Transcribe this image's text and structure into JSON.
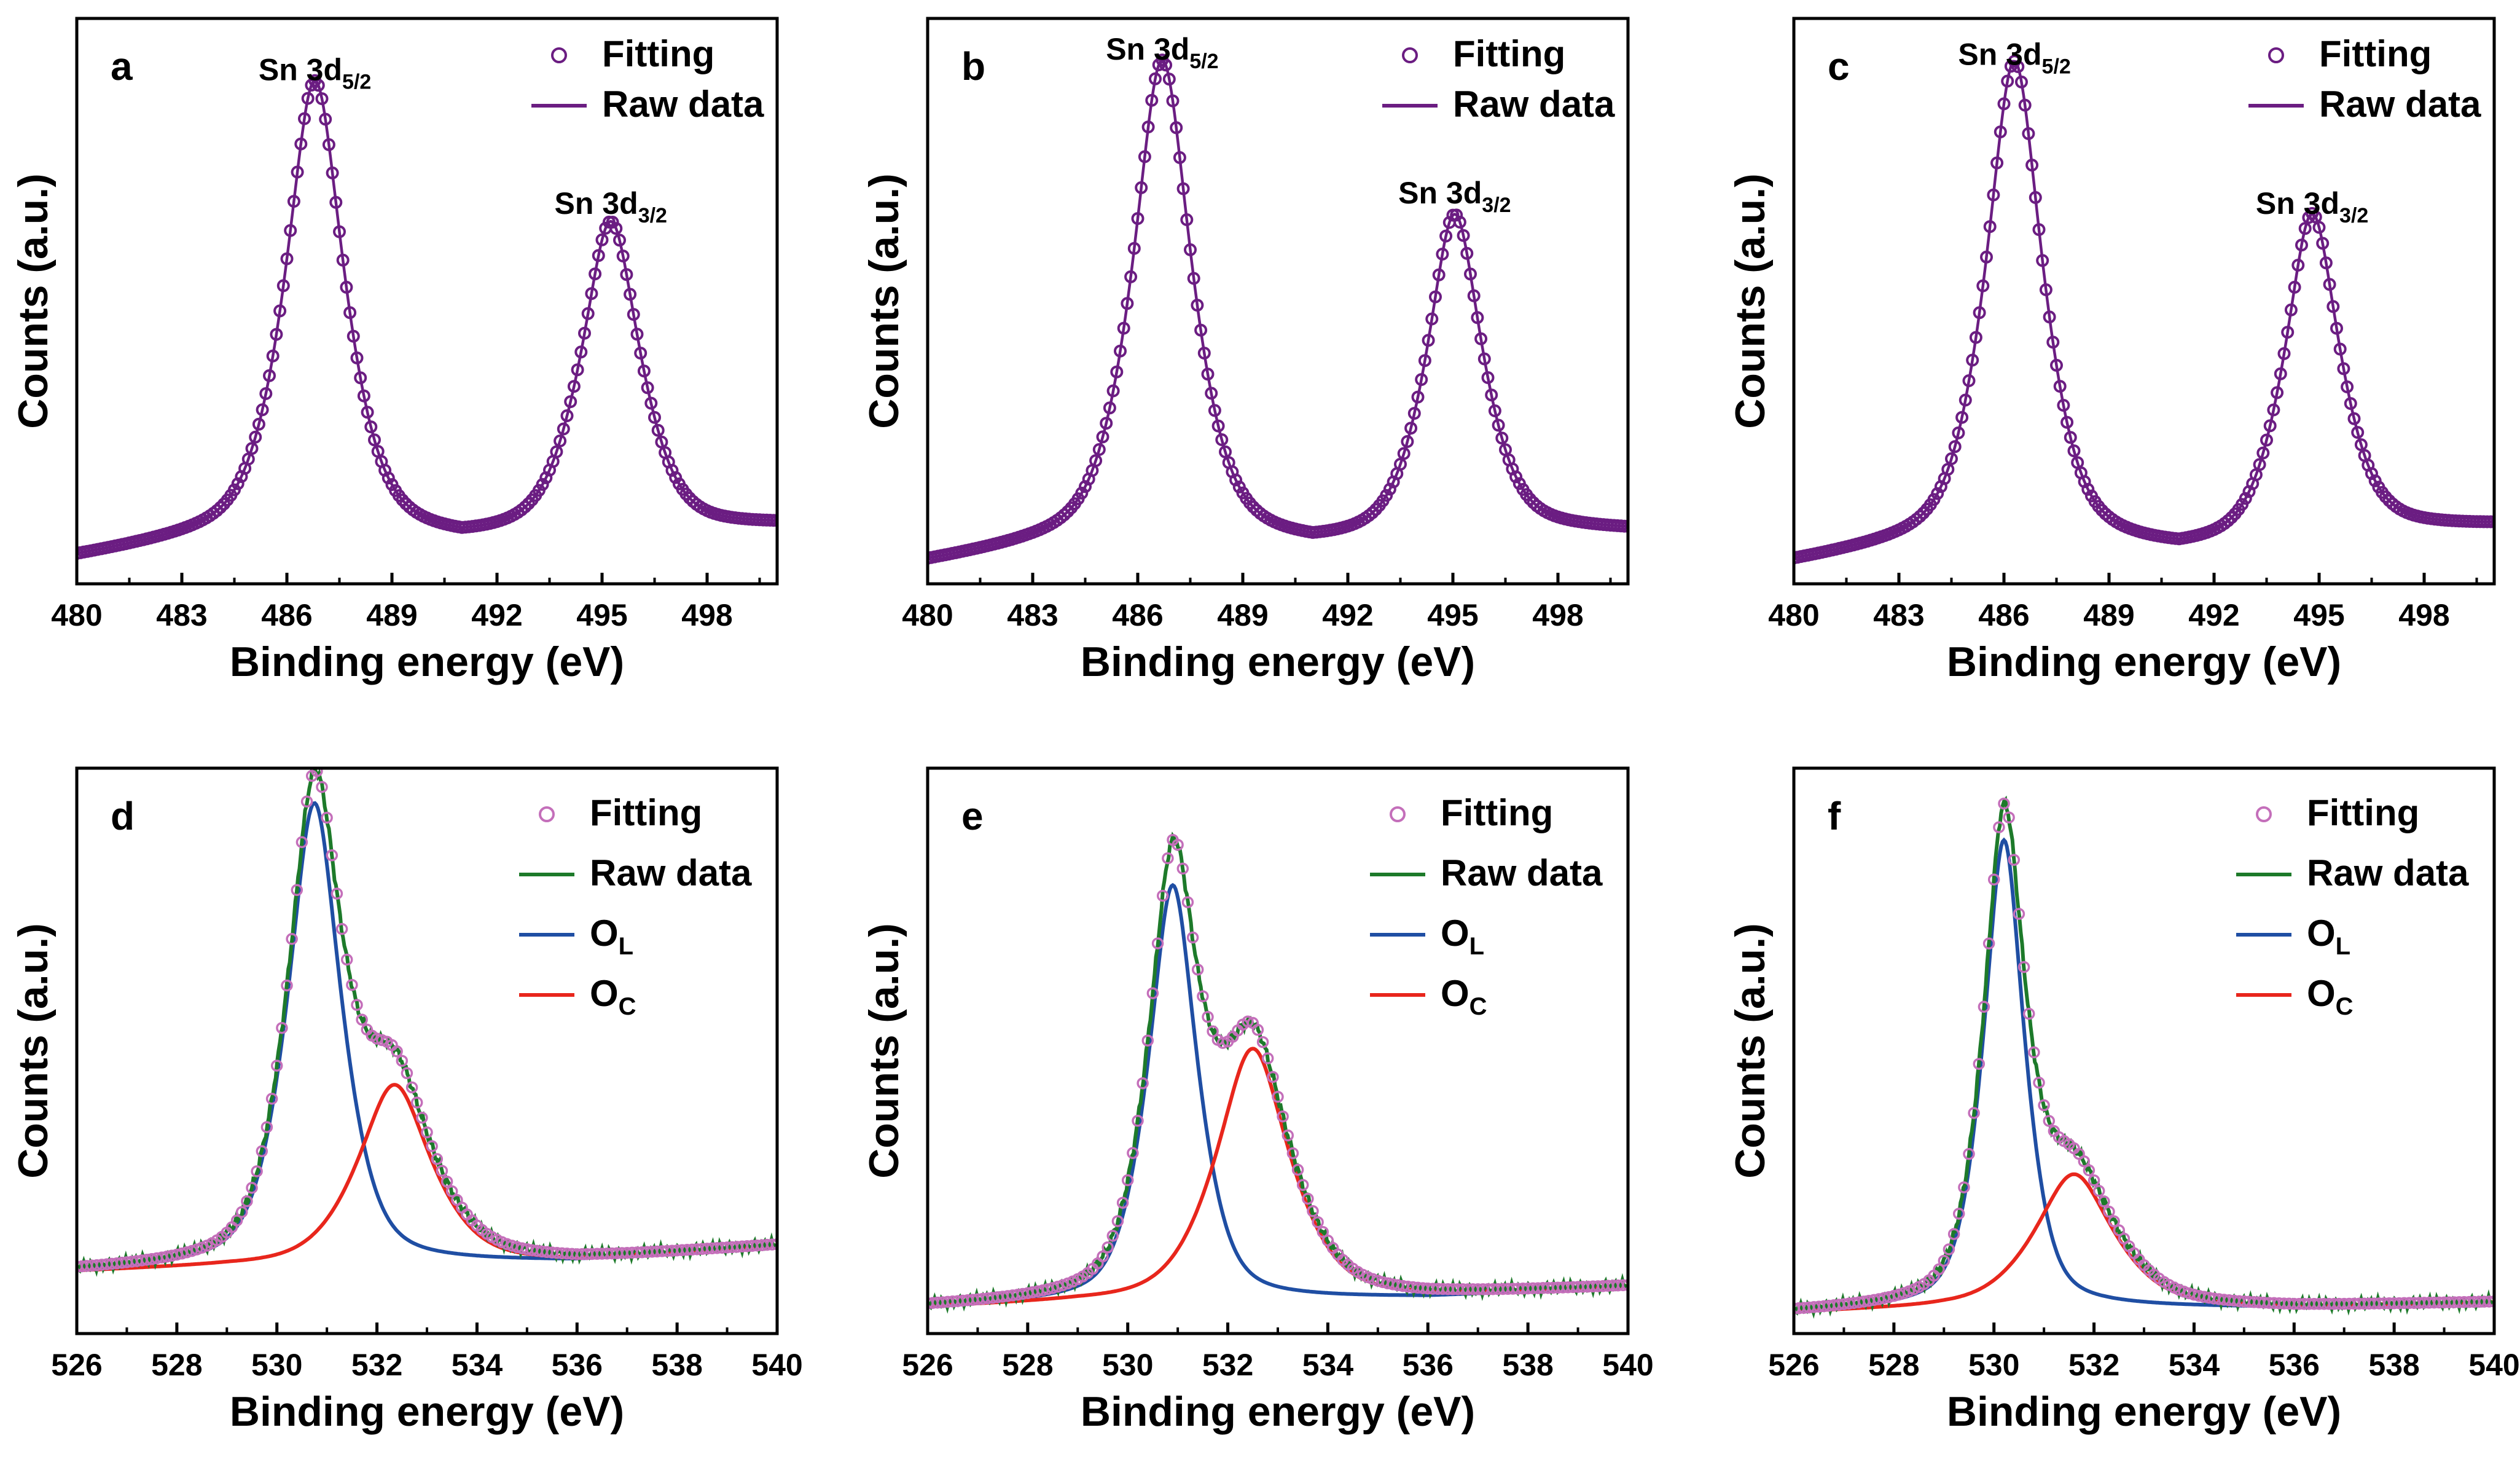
{
  "chart_data": [
    {
      "id": "a",
      "type": "line",
      "panel_label": "a",
      "xlabel": "Binding energy (eV)",
      "ylabel": "Counts (a.u.)",
      "xlim": [
        480,
        500
      ],
      "ylim": [
        0,
        1.1
      ],
      "xticks": [
        "480",
        "483",
        "486",
        "489",
        "492",
        "495",
        "498"
      ],
      "legend": {
        "location": "top-right",
        "entries": [
          "Fitting",
          "Raw data"
        ]
      },
      "peaks": [
        {
          "center": 486.8,
          "amp": 0.88,
          "width": 0.85
        },
        {
          "center": 495.25,
          "amp": 0.6,
          "width": 0.85
        }
      ],
      "baseline": [
        [
          480,
          0.05
        ],
        [
          485,
          0.1
        ],
        [
          489,
          0.09
        ],
        [
          491,
          0.075
        ],
        [
          494,
          0.1
        ],
        [
          497,
          0.1
        ],
        [
          500,
          0.11
        ]
      ],
      "annotations": [
        {
          "prefix": "Sn 3d",
          "sub": "5/2",
          "x": 486.8,
          "y": 0.98
        },
        {
          "prefix": "Sn 3d",
          "sub": "3/2",
          "x": 495.25,
          "y": 0.72
        }
      ],
      "series": [
        {
          "name": "Fitting",
          "style": "markers",
          "color": "#6b1d82"
        },
        {
          "name": "Raw data",
          "style": "line",
          "color": "#6b1d82"
        }
      ]
    },
    {
      "id": "b",
      "type": "line",
      "panel_label": "b",
      "xlabel": "Binding energy (eV)",
      "ylabel": "Counts (a.u.)",
      "xlim": [
        480,
        500
      ],
      "ylim": [
        0,
        1.1
      ],
      "xticks": [
        "480",
        "483",
        "486",
        "489",
        "492",
        "495",
        "498"
      ],
      "legend": {
        "location": "top-right",
        "entries": [
          "Fitting",
          "Raw data"
        ]
      },
      "peaks": [
        {
          "center": 486.7,
          "amp": 0.93,
          "width": 0.85
        },
        {
          "center": 495.05,
          "amp": 0.62,
          "width": 0.8
        }
      ],
      "baseline": [
        [
          480,
          0.04
        ],
        [
          485,
          0.09
        ],
        [
          489,
          0.08
        ],
        [
          491,
          0.065
        ],
        [
          494,
          0.09
        ],
        [
          497,
          0.1
        ],
        [
          500,
          0.1
        ]
      ],
      "annotations": [
        {
          "prefix": "Sn 3d",
          "sub": "5/2",
          "x": 486.7,
          "y": 1.02
        },
        {
          "prefix": "Sn 3d",
          "sub": "3/2",
          "x": 495.05,
          "y": 0.74
        }
      ],
      "series": [
        {
          "name": "Fitting",
          "style": "markers",
          "color": "#6b1d82"
        },
        {
          "name": "Raw data",
          "style": "line",
          "color": "#6b1d82"
        }
      ]
    },
    {
      "id": "c",
      "type": "line",
      "panel_label": "c",
      "xlabel": "Binding energy (eV)",
      "ylabel": "Counts (a.u.)",
      "xlim": [
        480,
        500
      ],
      "ylim": [
        0,
        1.1
      ],
      "xticks": [
        "480",
        "483",
        "486",
        "489",
        "492",
        "495",
        "498"
      ],
      "legend": {
        "location": "top-right",
        "entries": [
          "Fitting",
          "Raw data"
        ]
      },
      "peaks": [
        {
          "center": 486.3,
          "amp": 0.93,
          "width": 0.82
        },
        {
          "center": 494.8,
          "amp": 0.63,
          "width": 0.8
        }
      ],
      "baseline": [
        [
          480,
          0.04
        ],
        [
          485,
          0.09
        ],
        [
          489,
          0.07
        ],
        [
          491,
          0.055
        ],
        [
          494,
          0.08
        ],
        [
          497,
          0.1
        ],
        [
          500,
          0.11
        ]
      ],
      "annotations": [
        {
          "prefix": "Sn 3d",
          "sub": "5/2",
          "x": 486.3,
          "y": 1.01
        },
        {
          "prefix": "Sn 3d",
          "sub": "3/2",
          "x": 494.8,
          "y": 0.72
        }
      ],
      "series": [
        {
          "name": "Fitting",
          "style": "markers",
          "color": "#6b1d82"
        },
        {
          "name": "Raw data",
          "style": "line",
          "color": "#6b1d82"
        }
      ]
    },
    {
      "id": "d",
      "type": "line",
      "panel_label": "d",
      "xlabel": "Binding energy (eV)",
      "ylabel": "Counts (a.u.)",
      "xlim": [
        526,
        540
      ],
      "ylim": [
        0,
        1.1
      ],
      "xticks": [
        "526",
        "528",
        "530",
        "532",
        "534",
        "536",
        "538",
        "540"
      ],
      "legend": {
        "location": "top-right",
        "entries": [
          "Fitting",
          "Raw data",
          "O_L",
          "O_C"
        ]
      },
      "components": [
        {
          "name": "O_L",
          "center": 530.75,
          "amp": 0.9,
          "width": 0.55,
          "color": "#1f4ea3"
        },
        {
          "name": "O_C",
          "center": 532.35,
          "amp": 0.35,
          "width": 0.75,
          "color": "#e8261c"
        }
      ],
      "baseline": [
        [
          526,
          0.12
        ],
        [
          529,
          0.13
        ],
        [
          533,
          0.135
        ],
        [
          536,
          0.14
        ],
        [
          540,
          0.17
        ]
      ],
      "series": [
        {
          "name": "Fitting",
          "style": "markers",
          "color": "#c46fba"
        },
        {
          "name": "Raw data",
          "style": "line",
          "color": "#1d7a2a"
        },
        {
          "name": "O_L",
          "style": "line",
          "color": "#1f4ea3"
        },
        {
          "name": "O_C",
          "style": "line",
          "color": "#e8261c"
        }
      ]
    },
    {
      "id": "e",
      "type": "line",
      "panel_label": "e",
      "xlabel": "Binding energy (eV)",
      "ylabel": "Counts (a.u.)",
      "xlim": [
        526,
        540
      ],
      "ylim": [
        0,
        1.1
      ],
      "xticks": [
        "526",
        "528",
        "530",
        "532",
        "534",
        "536",
        "538",
        "540"
      ],
      "legend": {
        "location": "top-right",
        "entries": [
          "Fitting",
          "Raw data",
          "O_L",
          "O_C"
        ]
      },
      "components": [
        {
          "name": "O_L",
          "center": 530.9,
          "amp": 0.81,
          "width": 0.5,
          "color": "#1f4ea3"
        },
        {
          "name": "O_C",
          "center": 532.5,
          "amp": 0.49,
          "width": 0.75,
          "color": "#e8261c"
        }
      ],
      "baseline": [
        [
          526,
          0.05
        ],
        [
          529,
          0.06
        ],
        [
          533,
          0.065
        ],
        [
          536,
          0.07
        ],
        [
          540,
          0.09
        ]
      ],
      "series": [
        {
          "name": "Fitting",
          "style": "markers",
          "color": "#c46fba"
        },
        {
          "name": "Raw data",
          "style": "line",
          "color": "#1d7a2a"
        },
        {
          "name": "O_L",
          "style": "line",
          "color": "#1f4ea3"
        },
        {
          "name": "O_C",
          "style": "line",
          "color": "#e8261c"
        }
      ]
    },
    {
      "id": "f",
      "type": "line",
      "panel_label": "f",
      "xlabel": "Binding energy (eV)",
      "ylabel": "Counts (a.u.)",
      "xlim": [
        526,
        540
      ],
      "ylim": [
        0,
        1.1
      ],
      "xticks": [
        "526",
        "528",
        "530",
        "532",
        "534",
        "536",
        "538",
        "540"
      ],
      "legend": {
        "location": "top-right",
        "entries": [
          "Fitting",
          "Raw data",
          "O_L",
          "O_C"
        ]
      },
      "components": [
        {
          "name": "O_L",
          "center": 530.2,
          "amp": 0.91,
          "width": 0.42,
          "color": "#1f4ea3"
        },
        {
          "name": "O_C",
          "center": 531.6,
          "amp": 0.26,
          "width": 0.8,
          "color": "#e8261c"
        }
      ],
      "baseline": [
        [
          526,
          0.04
        ],
        [
          529,
          0.05
        ],
        [
          533,
          0.05
        ],
        [
          536,
          0.05
        ],
        [
          540,
          0.06
        ]
      ],
      "series": [
        {
          "name": "Fitting",
          "style": "markers",
          "color": "#c46fba"
        },
        {
          "name": "Raw data",
          "style": "line",
          "color": "#1d7a2a"
        },
        {
          "name": "O_L",
          "style": "line",
          "color": "#1f4ea3"
        },
        {
          "name": "O_C",
          "style": "line",
          "color": "#e8261c"
        }
      ]
    }
  ]
}
